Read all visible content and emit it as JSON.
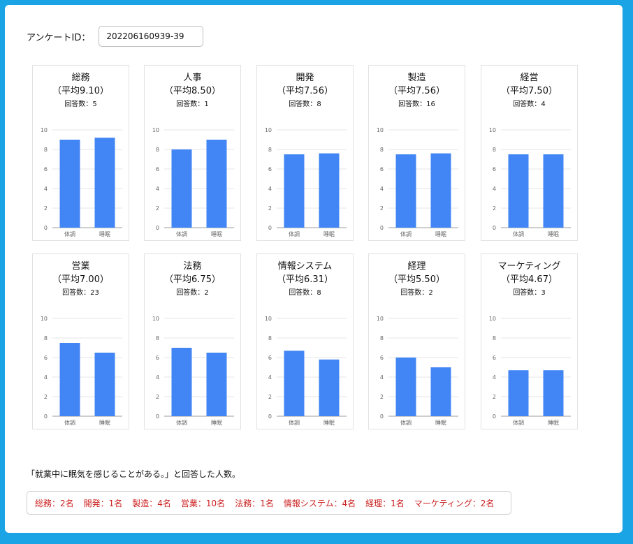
{
  "survey": {
    "label": "アンケートID：",
    "value": "202206160939-39"
  },
  "count_prefix": "回答数：",
  "charts": [
    {
      "title": "総務",
      "avg": "（平均9.10）",
      "count": "5"
    },
    {
      "title": "人事",
      "avg": "（平均8.50）",
      "count": "1"
    },
    {
      "title": "開発",
      "avg": "（平均7.56）",
      "count": "8"
    },
    {
      "title": "製造",
      "avg": "（平均7.56）",
      "count": "16"
    },
    {
      "title": "経営",
      "avg": "（平均7.50）",
      "count": "4"
    },
    {
      "title": "営業",
      "avg": "（平均7.00）",
      "count": "23"
    },
    {
      "title": "法務",
      "avg": "（平均6.75）",
      "count": "2"
    },
    {
      "title": "情報システム",
      "avg": "（平均6.31）",
      "count": "8"
    },
    {
      "title": "経理",
      "avg": "（平均5.50）",
      "count": "2"
    },
    {
      "title": "マーケティング",
      "avg": "（平均4.67）",
      "count": "3"
    }
  ],
  "chart_data": [
    {
      "type": "bar",
      "categories": [
        "体調",
        "睡眠"
      ],
      "values": [
        9.0,
        9.2
      ],
      "ylim": [
        0,
        10
      ],
      "yticks": [
        "0",
        "2",
        "4",
        "6",
        "8",
        "10"
      ]
    },
    {
      "type": "bar",
      "categories": [
        "体調",
        "睡眠"
      ],
      "values": [
        8.0,
        9.0
      ],
      "ylim": [
        0,
        10
      ],
      "yticks": [
        "0",
        "2",
        "4",
        "6",
        "8",
        "10"
      ]
    },
    {
      "type": "bar",
      "categories": [
        "体調",
        "睡眠"
      ],
      "values": [
        7.5,
        7.6
      ],
      "ylim": [
        0,
        10
      ],
      "yticks": [
        "0",
        "2",
        "4",
        "6",
        "8",
        "10"
      ]
    },
    {
      "type": "bar",
      "categories": [
        "体調",
        "睡眠"
      ],
      "values": [
        7.5,
        7.6
      ],
      "ylim": [
        0,
        10
      ],
      "yticks": [
        "0",
        "2",
        "4",
        "6",
        "8",
        "10"
      ]
    },
    {
      "type": "bar",
      "categories": [
        "体調",
        "睡眠"
      ],
      "values": [
        7.5,
        7.5
      ],
      "ylim": [
        0,
        10
      ],
      "yticks": [
        "0",
        "2",
        "4",
        "6",
        "8",
        "10"
      ]
    },
    {
      "type": "bar",
      "categories": [
        "体調",
        "睡眠"
      ],
      "values": [
        7.5,
        6.5
      ],
      "ylim": [
        0,
        10
      ],
      "yticks": [
        "0",
        "2",
        "4",
        "6",
        "8",
        "10"
      ]
    },
    {
      "type": "bar",
      "categories": [
        "体調",
        "睡眠"
      ],
      "values": [
        7.0,
        6.5
      ],
      "ylim": [
        0,
        10
      ],
      "yticks": [
        "0",
        "2",
        "4",
        "6",
        "8",
        "10"
      ]
    },
    {
      "type": "bar",
      "categories": [
        "体調",
        "睡眠"
      ],
      "values": [
        6.7,
        5.8
      ],
      "ylim": [
        0,
        10
      ],
      "yticks": [
        "0",
        "2",
        "4",
        "6",
        "8",
        "10"
      ]
    },
    {
      "type": "bar",
      "categories": [
        "体調",
        "睡眠"
      ],
      "values": [
        6.0,
        5.0
      ],
      "ylim": [
        0,
        10
      ],
      "yticks": [
        "0",
        "2",
        "4",
        "6",
        "8",
        "10"
      ]
    },
    {
      "type": "bar",
      "categories": [
        "体調",
        "睡眠"
      ],
      "values": [
        4.7,
        4.7
      ],
      "ylim": [
        0,
        10
      ],
      "yticks": [
        "0",
        "2",
        "4",
        "6",
        "8",
        "10"
      ]
    }
  ],
  "note": "「就業中に眠気を感じることがある。」と回答した人数。",
  "summary": [
    "総務：2名",
    "開発：1名",
    "製造：4名",
    "営業：10名",
    "法務：1名",
    "情報システム：4名",
    "経理：1名",
    "マーケティング：2名"
  ],
  "colors": {
    "bar": "#4285f4",
    "frame": "#1aa4e6",
    "summary_text": "#cc1f1f"
  }
}
